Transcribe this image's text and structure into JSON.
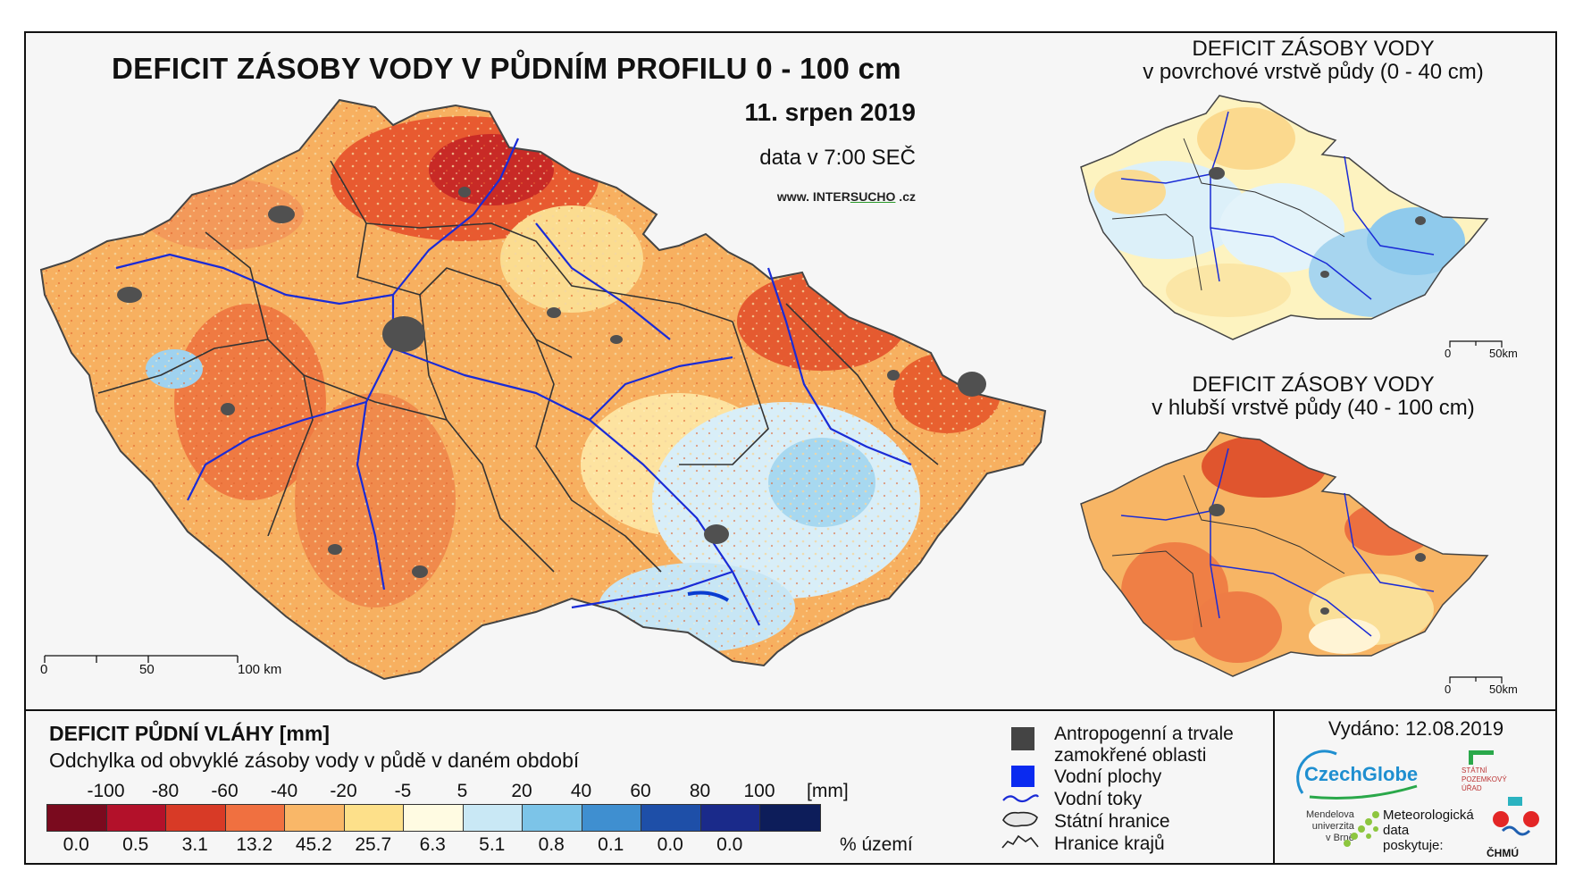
{
  "main_title": "DEFICIT ZÁSOBY VODY V PŮDNÍM PROFILU 0 - 100 cm",
  "date": "11. srpen 2019",
  "data_time": "data v 7:00 SEČ",
  "website": {
    "prefix": "www. ",
    "name_a": "INTER",
    "name_b": "SUCHO",
    "suffix": " .cz"
  },
  "inset_top": {
    "line1": "DEFICIT ZÁSOBY VODY",
    "line2": "v povrchové vrstvě půdy (0 - 40 cm)"
  },
  "inset_bottom": {
    "line1": "DEFICIT ZÁSOBY VODY",
    "line2": "v hlubší vrstvě půdy (40 - 100 cm)"
  },
  "scale_main": {
    "labels": [
      "0",
      "50",
      "100 km"
    ]
  },
  "scale_inset": {
    "labels": [
      "0",
      "50km"
    ]
  },
  "legend": {
    "title": "DEFICIT PŮDNÍ VLÁHY [mm]",
    "subtitle": "Odchylka od obvyklé zásoby vody v půdě v daném období",
    "ticks": [
      "-100",
      "-80",
      "-60",
      "-40",
      "-20",
      "-5",
      "5",
      "20",
      "40",
      "60",
      "80",
      "100"
    ],
    "unit": "[mm]",
    "percent_label": "% území",
    "classes": [
      {
        "color": "#7a0a1e",
        "percent": "0.0"
      },
      {
        "color": "#b3112a",
        "percent": "0.5"
      },
      {
        "color": "#d83a26",
        "percent": "3.1"
      },
      {
        "color": "#f07040",
        "percent": "13.2"
      },
      {
        "color": "#f9b768",
        "percent": "45.2"
      },
      {
        "color": "#fde08a",
        "percent": "25.7"
      },
      {
        "color": "#fffbe2",
        "percent": "6.3"
      },
      {
        "color": "#c9e8f5",
        "percent": "5.1"
      },
      {
        "color": "#7cc4e8",
        "percent": "0.8"
      },
      {
        "color": "#3f8fd0",
        "percent": "0.1"
      },
      {
        "color": "#1e4fa8",
        "percent": "0.0"
      },
      {
        "color": "#1a2a8a",
        "percent": "0.0"
      },
      {
        "color": "#0d1d5a",
        "percent": ""
      }
    ]
  },
  "symbols": [
    {
      "icon": "urban-area-icon",
      "line1": "Antropogenní a trvale",
      "line2": "zamokřené oblasti"
    },
    {
      "icon": "water-body-icon",
      "line1": "Vodní plochy",
      "line2": ""
    },
    {
      "icon": "river-icon",
      "line1": "Vodní toky",
      "line2": ""
    },
    {
      "icon": "state-border-icon",
      "line1": "Státní hranice",
      "line2": ""
    },
    {
      "icon": "region-border-icon",
      "line1": "Hranice krajů",
      "line2": ""
    }
  ],
  "issued": "Vydáno: 12.08.2019",
  "logos": {
    "czechglobe": "CzechGlobe",
    "spu": [
      "STÁTNÍ",
      "POZEMKOVÝ",
      "ÚŘAD"
    ],
    "mendel": [
      "Mendelova",
      "univerzita",
      "v Brně"
    ],
    "meteo": [
      "Meteorologická",
      "data",
      "poskytuje:"
    ],
    "chmu": "ČHMÚ"
  }
}
